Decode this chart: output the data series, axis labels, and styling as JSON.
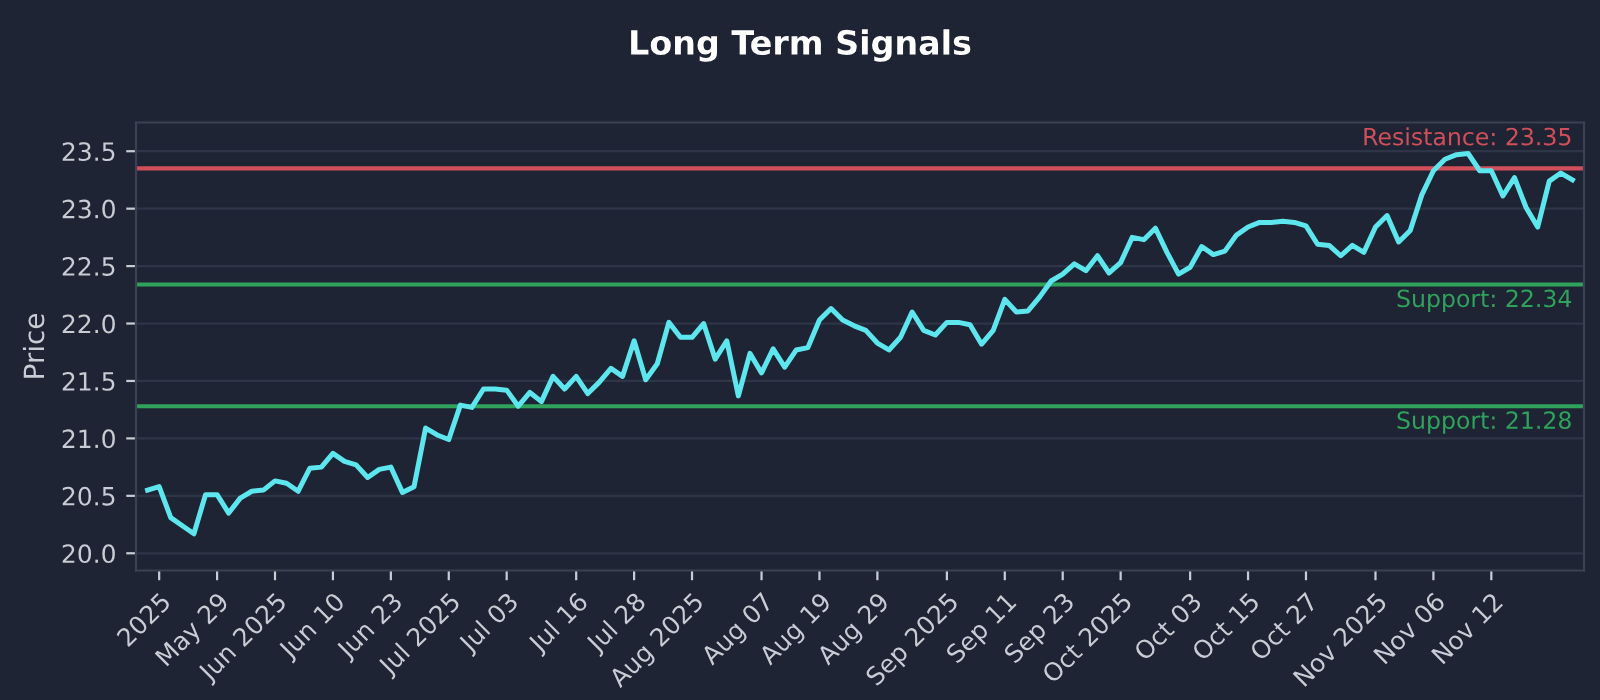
{
  "chart_data": {
    "type": "line",
    "title": "Long Term Signals",
    "ylabel": "Price",
    "categories": [
      null,
      "2025",
      null,
      null,
      null,
      null,
      "May 29",
      null,
      null,
      null,
      null,
      "Jun 2025",
      null,
      null,
      null,
      null,
      "Jun 10",
      null,
      null,
      null,
      null,
      "Jun 23",
      null,
      null,
      null,
      null,
      "Jul 2025",
      null,
      null,
      null,
      null,
      "Jul 03",
      null,
      null,
      null,
      null,
      null,
      "Jul 16",
      null,
      null,
      null,
      null,
      "Jul 28",
      null,
      null,
      null,
      null,
      "Aug 2025",
      null,
      null,
      null,
      null,
      null,
      "Aug 07",
      null,
      null,
      null,
      null,
      "Aug 19",
      null,
      null,
      null,
      null,
      "Aug 29",
      null,
      null,
      null,
      null,
      null,
      "Sep 2025",
      null,
      null,
      null,
      null,
      "Sep 11",
      null,
      null,
      null,
      null,
      "Sep 23",
      null,
      null,
      null,
      null,
      "Oct 2025",
      null,
      null,
      null,
      null,
      null,
      "Oct 03",
      null,
      null,
      null,
      null,
      "Oct 15",
      null,
      null,
      null,
      null,
      "Oct 27",
      null,
      null,
      null,
      null,
      null,
      "Nov 2025",
      null,
      null,
      null,
      null,
      "Nov 06",
      null,
      null,
      null,
      null,
      "Nov 12",
      null,
      null,
      null,
      null,
      null,
      null,
      null
    ],
    "series": [
      {
        "color": "#5ee6ee",
        "values": [
          20.55,
          20.58,
          20.31,
          20.24,
          20.17,
          20.51,
          20.51,
          20.35,
          20.48,
          20.54,
          20.55,
          20.63,
          20.61,
          20.54,
          20.74,
          20.75,
          20.87,
          20.8,
          20.77,
          20.66,
          20.73,
          20.75,
          20.53,
          20.58,
          21.09,
          21.03,
          20.99,
          21.29,
          21.27,
          21.43,
          21.43,
          21.42,
          21.28,
          21.4,
          21.32,
          21.54,
          21.43,
          21.54,
          21.39,
          21.49,
          21.61,
          21.54,
          21.85,
          21.51,
          21.65,
          22.01,
          21.88,
          21.88,
          22.0,
          21.69,
          21.85,
          21.37,
          21.74,
          21.57,
          21.78,
          21.62,
          21.77,
          21.79,
          22.03,
          22.13,
          22.03,
          21.98,
          21.94,
          21.83,
          21.77,
          21.88,
          22.1,
          21.94,
          21.9,
          22.01,
          22.01,
          21.99,
          21.82,
          21.94,
          22.21,
          22.1,
          22.11,
          22.23,
          22.37,
          22.43,
          22.52,
          22.46,
          22.59,
          22.44,
          22.53,
          22.75,
          22.73,
          22.83,
          22.62,
          22.43,
          22.49,
          22.67,
          22.6,
          22.63,
          22.77,
          22.84,
          22.88,
          22.88,
          22.89,
          22.88,
          22.85,
          22.69,
          22.68,
          22.59,
          22.68,
          22.62,
          22.84,
          22.94,
          22.71,
          22.81,
          23.12,
          23.33,
          23.43,
          23.47,
          23.48,
          23.33,
          23.33,
          23.11,
          23.27,
          23.01,
          22.84,
          23.24,
          23.31,
          23.25
        ]
      }
    ],
    "ylim": [
      19.85,
      23.75
    ],
    "yticks": [
      {
        "value": 20,
        "label": "20.0"
      },
      20.5,
      {
        "value": 21,
        "label": "21.0"
      },
      21.5,
      {
        "value": 22,
        "label": "22.0"
      },
      22.5,
      {
        "value": 23,
        "label": "23.0"
      },
      23.5
    ],
    "grid": "y",
    "marker": "none",
    "line_style": "solid",
    "ref_lines": [
      {
        "axis": "y",
        "value": 23.35,
        "label": "Resistance: 23.35",
        "color": "#d04f5a"
      },
      {
        "axis": "y",
        "value": 22.34,
        "label": "Support: 22.34",
        "color": "#2fa35c"
      },
      {
        "axis": "y",
        "value": 21.28,
        "label": "Support: 21.28",
        "color": "#2fa35c"
      }
    ]
  }
}
